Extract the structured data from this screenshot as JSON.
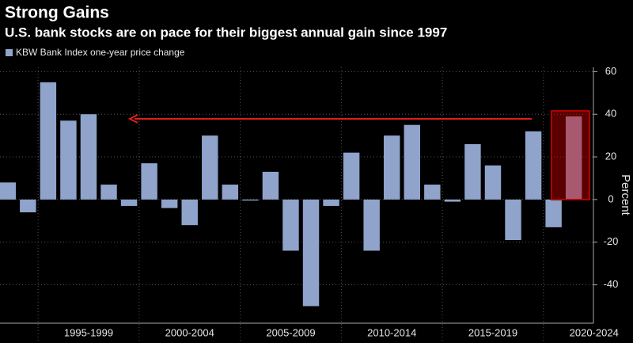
{
  "chart_data": {
    "type": "bar",
    "title": "Strong Gains",
    "subtitle": "U.S. bank stocks are on pace for their biggest annual gain since 1997",
    "legend": "KBW Bank Index one-year price change",
    "y_axis_label": "Percent",
    "categories": [
      null,
      null,
      null,
      null,
      null,
      null,
      null,
      null,
      null,
      null,
      null,
      null,
      null,
      null,
      null,
      null,
      null,
      null,
      null,
      null,
      null,
      null,
      null,
      null,
      null,
      null,
      null,
      null,
      null
    ],
    "values": [
      8,
      -6,
      55,
      37,
      40,
      7,
      -3,
      17,
      -4,
      -12,
      30,
      7,
      -0.5,
      13,
      -24,
      -50,
      -3,
      22,
      -24,
      30,
      35,
      7,
      -1,
      26,
      16,
      -19,
      32,
      -13,
      39
    ],
    "x_groups": [
      "1995-1999",
      "2000-2004",
      "2005-2009",
      "2010-2014",
      "2015-2019",
      "2020-2024"
    ],
    "color": "#8fa3cb",
    "ylim": [
      -58,
      62
    ],
    "yticks": [
      -40,
      -20,
      0,
      20,
      40,
      60
    ],
    "grid": true
  }
}
